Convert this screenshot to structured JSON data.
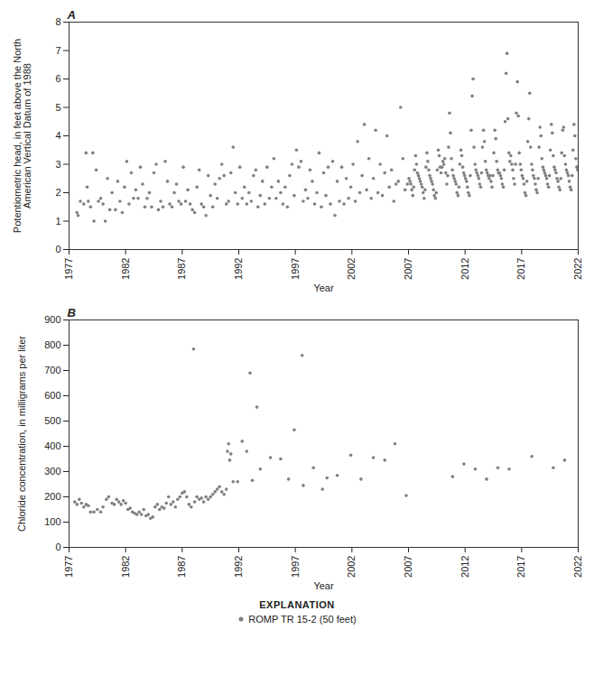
{
  "chart_data": [
    {
      "type": "scatter",
      "title": "A",
      "x_label": "Year",
      "y_label": "Potentiometric head, in feet above the North American Vertical Datum of 1988",
      "xlim": [
        1977,
        2022
      ],
      "xticks": [
        1977,
        1982,
        1987,
        1992,
        1997,
        2002,
        2007,
        2012,
        2017,
        2022
      ],
      "ylim": [
        0,
        8
      ],
      "yticks": [
        0,
        1,
        2,
        3,
        4,
        5,
        6,
        7,
        8
      ],
      "grid": false,
      "series": [
        {
          "name": "ROMP TR 15-2 (50 feet)",
          "color": "#808080",
          "marker": "circle",
          "x": [
            1977.7,
            1977.8,
            1978.0,
            1978.3,
            1978.5,
            1978.6,
            1978.7,
            1978.9,
            1979.1,
            1979.2,
            1979.4,
            1979.6,
            1979.8,
            1980.0,
            1980.2,
            1980.4,
            1980.6,
            1980.8,
            1981.1,
            1981.3,
            1981.5,
            1981.7,
            1981.9,
            1982.1,
            1982.3,
            1982.5,
            1982.7,
            1982.9,
            1983.1,
            1983.3,
            1983.5,
            1983.7,
            1983.9,
            1984.1,
            1984.3,
            1984.5,
            1984.7,
            1984.9,
            1985.1,
            1985.3,
            1985.5,
            1985.7,
            1985.9,
            1986.1,
            1986.3,
            1986.5,
            1986.7,
            1986.9,
            1987.1,
            1987.3,
            1987.5,
            1987.7,
            1987.9,
            1988.1,
            1988.3,
            1988.5,
            1988.7,
            1988.9,
            1989.1,
            1989.3,
            1989.5,
            1989.7,
            1989.9,
            1990.1,
            1990.3,
            1990.5,
            1990.7,
            1990.9,
            1991.1,
            1991.3,
            1991.5,
            1991.7,
            1991.9,
            1992.1,
            1992.3,
            1992.5,
            1992.7,
            1992.9,
            1993.1,
            1993.3,
            1993.5,
            1993.7,
            1993.9,
            1994.1,
            1994.3,
            1994.5,
            1994.7,
            1994.9,
            1995.1,
            1995.3,
            1995.5,
            1995.7,
            1995.9,
            1996.1,
            1996.3,
            1996.5,
            1996.7,
            1996.9,
            1997.1,
            1997.3,
            1997.5,
            1997.7,
            1997.9,
            1998.1,
            1998.3,
            1998.5,
            1998.7,
            1998.9,
            1999.1,
            1999.3,
            1999.5,
            1999.7,
            1999.9,
            2000.1,
            2000.3,
            2000.5,
            2000.7,
            2000.9,
            2001.1,
            2001.3,
            2001.5,
            2001.7,
            2001.9,
            2002.1,
            2002.3,
            2002.5,
            2002.7,
            2002.9,
            2003.1,
            2003.3,
            2003.5,
            2003.7,
            2003.9,
            2004.1,
            2004.3,
            2004.5,
            2004.7,
            2004.9,
            2005.1,
            2005.3,
            2005.5,
            2005.7,
            2005.9,
            2006.1,
            2006.3,
            2006.5,
            2006.7,
            2006.9,
            2007.04,
            2007.13,
            2007.21,
            2007.29,
            2007.38,
            2007.46,
            2007.54,
            2007.63,
            2007.71,
            2007.79,
            2007.88,
            2007.96,
            2008.04,
            2008.13,
            2008.21,
            2008.29,
            2008.38,
            2008.46,
            2008.54,
            2008.63,
            2008.71,
            2008.79,
            2008.88,
            2008.96,
            2009.04,
            2009.13,
            2009.21,
            2009.29,
            2009.38,
            2009.46,
            2009.54,
            2009.63,
            2009.71,
            2009.79,
            2009.88,
            2009.96,
            2010.04,
            2010.13,
            2010.21,
            2010.29,
            2010.38,
            2010.46,
            2010.54,
            2010.63,
            2010.71,
            2010.79,
            2010.88,
            2010.96,
            2011.04,
            2011.13,
            2011.21,
            2011.29,
            2011.38,
            2011.46,
            2011.54,
            2011.63,
            2011.71,
            2011.79,
            2011.88,
            2011.96,
            2012.04,
            2012.13,
            2012.21,
            2012.29,
            2012.38,
            2012.46,
            2012.54,
            2012.63,
            2012.71,
            2012.79,
            2012.88,
            2012.96,
            2013.04,
            2013.13,
            2013.21,
            2013.29,
            2013.38,
            2013.46,
            2013.54,
            2013.63,
            2013.71,
            2013.79,
            2013.88,
            2013.96,
            2014.04,
            2014.13,
            2014.21,
            2014.29,
            2014.38,
            2014.46,
            2014.54,
            2014.63,
            2014.71,
            2014.79,
            2014.88,
            2014.96,
            2015.04,
            2015.13,
            2015.21,
            2015.29,
            2015.38,
            2015.46,
            2015.54,
            2015.63,
            2015.71,
            2015.79,
            2015.88,
            2015.96,
            2016.04,
            2016.13,
            2016.21,
            2016.29,
            2016.38,
            2016.46,
            2016.54,
            2016.63,
            2016.71,
            2016.79,
            2016.88,
            2016.96,
            2017.04,
            2017.13,
            2017.21,
            2017.29,
            2017.38,
            2017.46,
            2017.54,
            2017.63,
            2017.71,
            2017.79,
            2017.88,
            2017.96,
            2018.04,
            2018.13,
            2018.21,
            2018.29,
            2018.38,
            2018.46,
            2018.54,
            2018.63,
            2018.71,
            2018.79,
            2018.88,
            2018.96,
            2019.04,
            2019.13,
            2019.21,
            2019.29,
            2019.38,
            2019.46,
            2019.54,
            2019.63,
            2019.71,
            2019.79,
            2019.88,
            2019.96,
            2020.04,
            2020.13,
            2020.21,
            2020.29,
            2020.38,
            2020.46,
            2020.54,
            2020.63,
            2020.71,
            2020.79,
            2020.88,
            2020.96,
            2021.04,
            2021.13,
            2021.21,
            2021.29,
            2021.38,
            2021.46,
            2021.54,
            2021.63,
            2021.71,
            2021.79,
            2021.88,
            2021.96
          ],
          "values": [
            1.3,
            1.2,
            1.7,
            1.6,
            3.4,
            2.2,
            1.7,
            1.5,
            3.4,
            1.0,
            2.8,
            1.7,
            1.8,
            1.6,
            1.0,
            2.5,
            1.4,
            2.0,
            1.4,
            2.4,
            1.7,
            1.3,
            2.2,
            3.1,
            1.6,
            2.7,
            1.8,
            2.1,
            1.8,
            2.9,
            2.3,
            1.5,
            1.8,
            2.0,
            1.5,
            2.7,
            3.0,
            1.4,
            1.7,
            1.5,
            3.1,
            2.4,
            1.6,
            1.5,
            2.0,
            2.3,
            1.7,
            1.6,
            2.9,
            1.7,
            2.1,
            1.6,
            1.4,
            1.3,
            2.2,
            2.8,
            1.6,
            1.5,
            1.2,
            2.6,
            1.9,
            1.5,
            2.3,
            1.8,
            2.5,
            3.0,
            2.6,
            1.6,
            1.7,
            2.7,
            3.6,
            2.0,
            1.6,
            2.9,
            1.8,
            2.2,
            1.6,
            2.0,
            1.7,
            2.6,
            2.8,
            1.5,
            1.9,
            2.4,
            1.6,
            2.9,
            1.8,
            2.2,
            3.2,
            1.8,
            2.4,
            2.0,
            1.6,
            2.2,
            1.5,
            2.6,
            3.0,
            1.9,
            3.5,
            2.9,
            3.1,
            1.7,
            2.1,
            1.8,
            2.8,
            2.4,
            1.6,
            2.0,
            3.4,
            1.5,
            2.7,
            1.9,
            2.9,
            1.6,
            3.1,
            1.2,
            2.4,
            1.7,
            2.9,
            1.6,
            2.5,
            1.8,
            2.2,
            3.0,
            1.7,
            3.8,
            2.0,
            2.6,
            4.4,
            2.1,
            3.2,
            1.8,
            2.5,
            4.2,
            2.0,
            3.0,
            1.9,
            2.7,
            4.0,
            2.2,
            2.8,
            1.7,
            2.3,
            2.4,
            5.0,
            3.2,
            2.1,
            2.3,
            2.5,
            2.4,
            2.3,
            2.1,
            1.9,
            2.2,
            2.8,
            3.3,
            3.0,
            2.7,
            2.6,
            2.5,
            2.4,
            2.3,
            2.2,
            2.0,
            1.8,
            2.1,
            2.9,
            3.4,
            3.1,
            2.8,
            2.6,
            2.5,
            2.4,
            2.3,
            2.1,
            1.9,
            1.8,
            2.0,
            2.8,
            3.5,
            3.3,
            2.9,
            2.7,
            2.9,
            3.1,
            3.0,
            3.2,
            2.7,
            2.3,
            2.6,
            3.6,
            4.8,
            4.1,
            3.2,
            2.8,
            2.6,
            2.5,
            2.4,
            2.3,
            2.0,
            1.9,
            2.2,
            3.0,
            3.5,
            3.3,
            2.9,
            2.7,
            2.6,
            2.5,
            2.4,
            2.2,
            2.0,
            1.9,
            2.6,
            4.2,
            5.4,
            6.0,
            3.6,
            3.0,
            2.8,
            2.7,
            2.6,
            2.5,
            2.3,
            2.2,
            2.7,
            3.6,
            4.2,
            3.8,
            3.1,
            2.8,
            2.7,
            2.6,
            2.5,
            2.6,
            2.4,
            2.2,
            2.6,
            3.4,
            4.2,
            3.9,
            3.1,
            2.8,
            2.7,
            2.7,
            2.6,
            2.5,
            2.3,
            2.2,
            2.8,
            4.5,
            6.2,
            6.9,
            4.6,
            3.4,
            3.1,
            3.3,
            3.0,
            2.8,
            2.5,
            2.3,
            3.0,
            4.8,
            5.9,
            4.7,
            3.4,
            3.0,
            2.8,
            2.6,
            2.5,
            2.3,
            2.0,
            1.9,
            2.4,
            3.8,
            4.6,
            5.5,
            3.6,
            3.0,
            2.8,
            2.6,
            2.5,
            2.3,
            2.1,
            2.0,
            2.5,
            3.6,
            4.3,
            4.0,
            3.2,
            2.9,
            2.8,
            2.7,
            2.6,
            2.5,
            2.3,
            2.2,
            2.6,
            3.5,
            4.4,
            4.1,
            3.3,
            2.9,
            2.8,
            2.7,
            2.5,
            2.4,
            2.2,
            2.1,
            2.5,
            3.4,
            4.2,
            4.3,
            3.3,
            3.0,
            2.8,
            2.7,
            2.6,
            2.4,
            2.2,
            2.1,
            2.6,
            3.5,
            4.4,
            4.0,
            3.2,
            2.9,
            2.8
          ]
        }
      ]
    },
    {
      "type": "scatter",
      "title": "B",
      "x_label": "Year",
      "y_label": "Chloride concentration, in milligrams per liter",
      "xlim": [
        1977,
        2022
      ],
      "xticks": [
        1977,
        1982,
        1987,
        1992,
        1997,
        2002,
        2007,
        2012,
        2017,
        2022
      ],
      "ylim": [
        0,
        900
      ],
      "yticks": [
        0,
        100,
        200,
        300,
        400,
        500,
        600,
        700,
        800,
        900
      ],
      "grid": false,
      "legend": "bottom",
      "legend_title": "EXPLANATION",
      "series": [
        {
          "name": "ROMP TR 15-2 (50 feet)",
          "color": "#808080",
          "marker": "circle",
          "x": [
            1977.5,
            1977.7,
            1977.9,
            1978.1,
            1978.3,
            1978.5,
            1978.7,
            1978.9,
            1979.2,
            1979.5,
            1979.8,
            1980.0,
            1980.3,
            1980.5,
            1980.8,
            1981.0,
            1981.2,
            1981.4,
            1981.6,
            1981.8,
            1982.0,
            1982.2,
            1982.4,
            1982.6,
            1982.8,
            1983.0,
            1983.2,
            1983.4,
            1983.6,
            1983.8,
            1984.0,
            1984.2,
            1984.4,
            1984.6,
            1984.8,
            1985.0,
            1985.2,
            1985.4,
            1985.6,
            1985.8,
            1986.0,
            1986.2,
            1986.4,
            1986.6,
            1986.8,
            1987.0,
            1987.2,
            1987.4,
            1987.6,
            1987.8,
            1988.0,
            1988.1,
            1988.3,
            1988.5,
            1988.7,
            1988.9,
            1989.1,
            1989.3,
            1989.5,
            1989.7,
            1989.9,
            1990.1,
            1990.3,
            1990.5,
            1990.7,
            1990.9,
            1991.0,
            1991.1,
            1991.2,
            1991.3,
            1991.5,
            1991.9,
            1992.3,
            1992.7,
            1993.0,
            1993.2,
            1993.6,
            1993.9,
            1994.8,
            1995.7,
            1996.4,
            1996.9,
            1997.6,
            1997.7,
            1998.6,
            1999.4,
            1999.8,
            2000.7,
            2001.9,
            2002.8,
            2003.9,
            2004.9,
            2005.8,
            2006.8,
            2010.9,
            2011.9,
            2012.9,
            2013.9,
            2014.9,
            2015.9,
            2017.9,
            2019.8,
            2020.8
          ],
          "values": [
            180,
            170,
            190,
            175,
            160,
            170,
            165,
            140,
            140,
            150,
            140,
            160,
            190,
            200,
            175,
            170,
            190,
            180,
            170,
            185,
            175,
            150,
            155,
            140,
            135,
            130,
            140,
            130,
            150,
            125,
            130,
            115,
            120,
            160,
            170,
            150,
            160,
            155,
            175,
            200,
            170,
            180,
            160,
            190,
            200,
            215,
            220,
            200,
            170,
            160,
            785,
            180,
            200,
            190,
            195,
            180,
            200,
            190,
            200,
            210,
            220,
            230,
            240,
            220,
            210,
            230,
            380,
            410,
            345,
            370,
            260,
            260,
            420,
            380,
            690,
            265,
            555,
            310,
            355,
            350,
            270,
            465,
            760,
            245,
            315,
            230,
            275,
            285,
            365,
            270,
            355,
            345,
            410,
            205,
            280,
            330,
            310,
            270,
            315,
            310,
            360,
            315,
            345
          ]
        }
      ]
    }
  ]
}
